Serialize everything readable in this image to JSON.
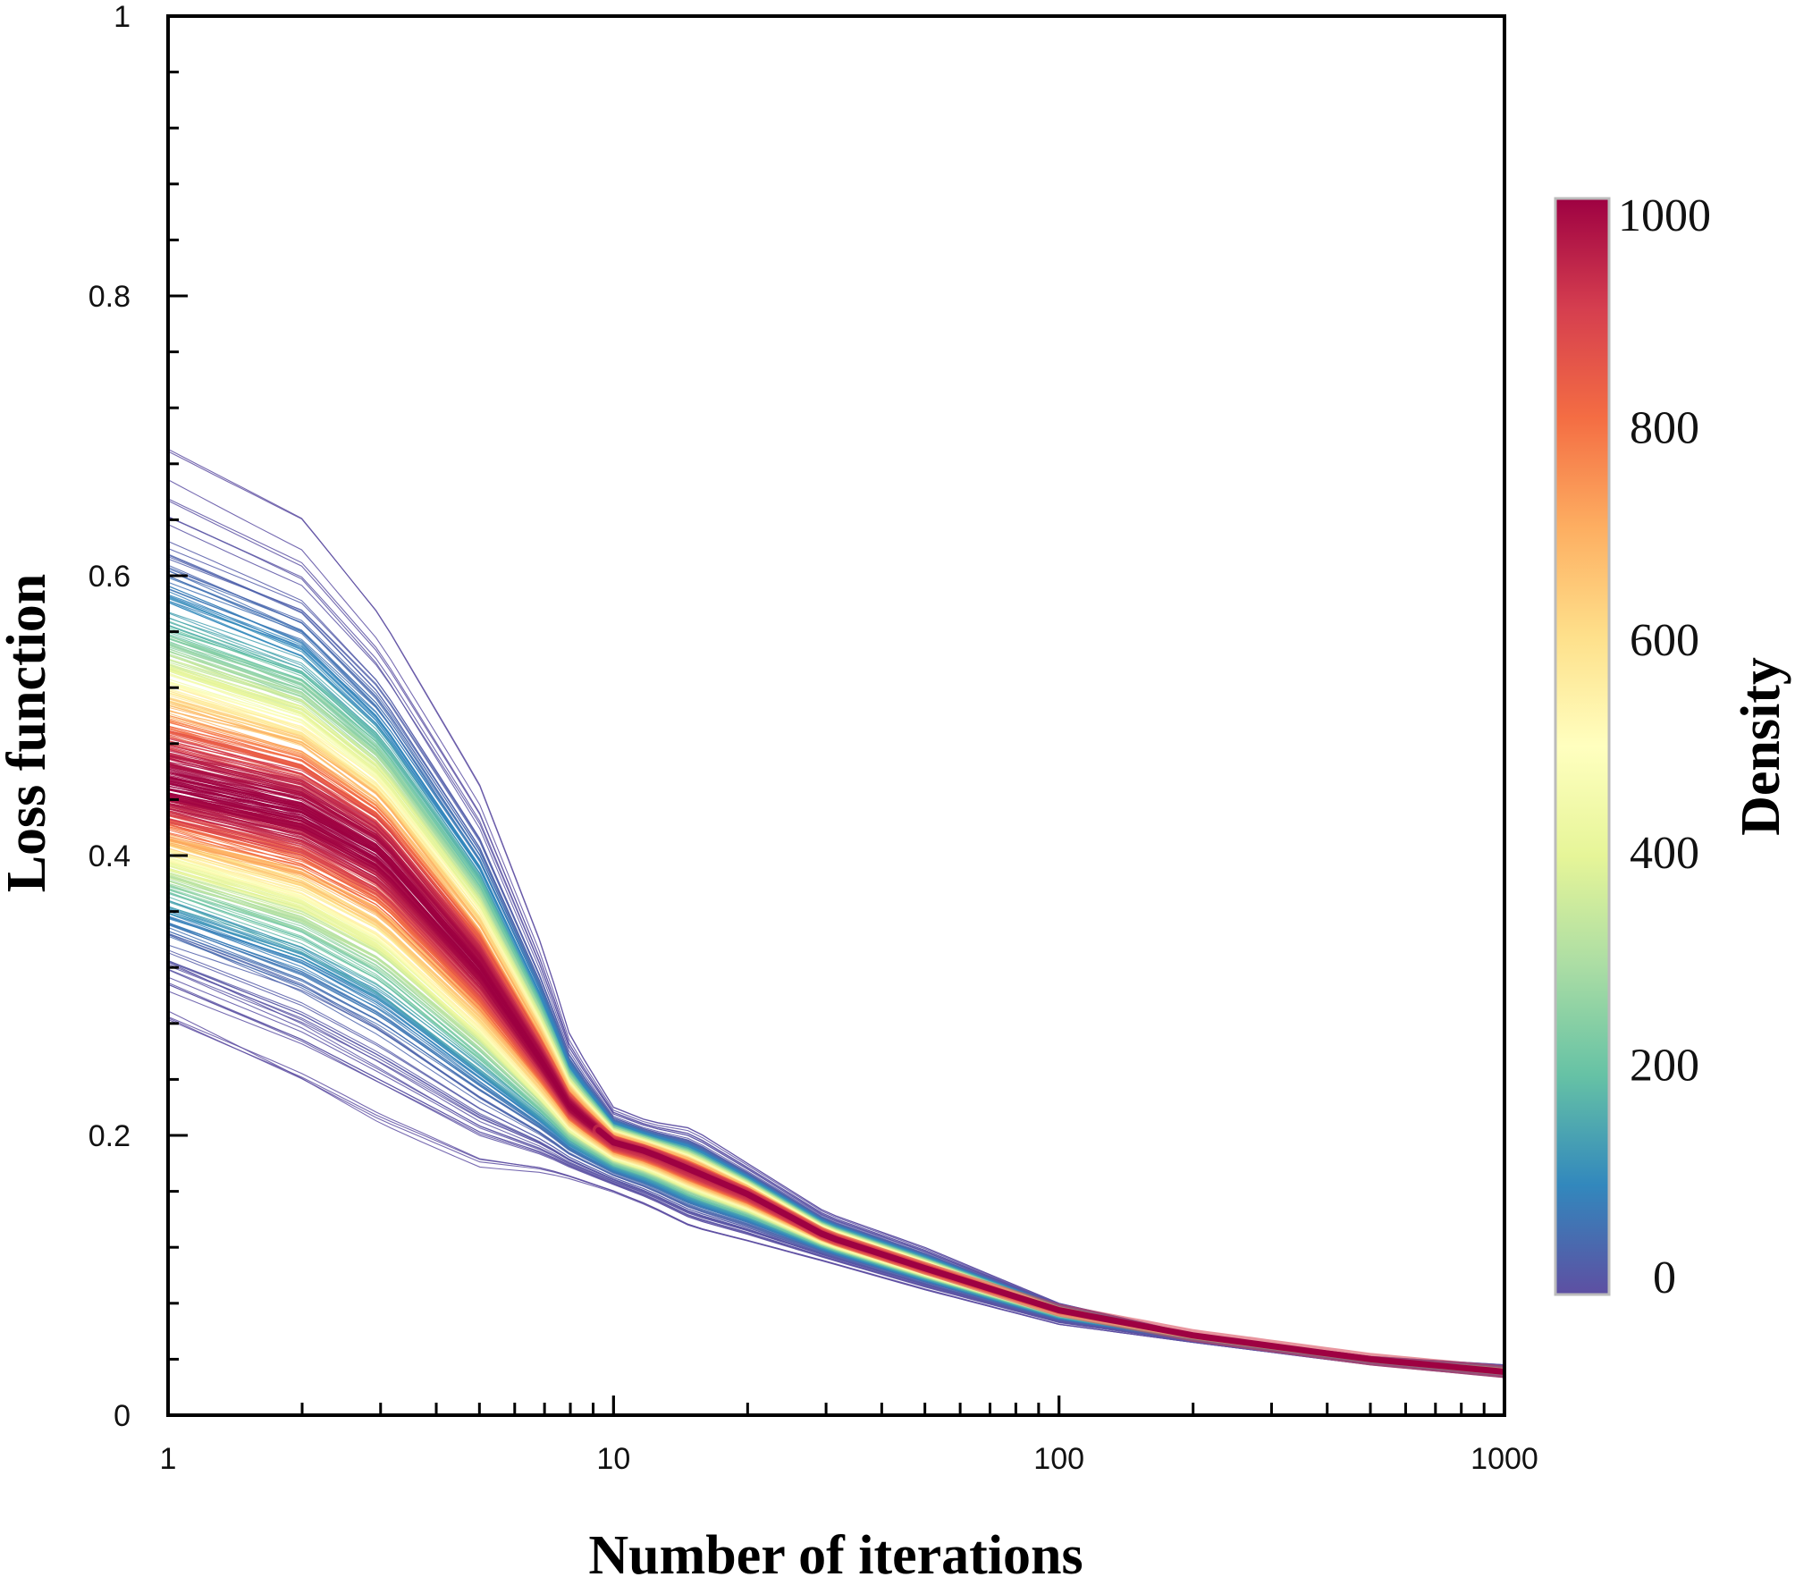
{
  "chart_data": {
    "type": "line",
    "xlabel": "Number of iterations",
    "ylabel": "Loss function",
    "xscale": "log",
    "xlim": [
      1,
      1000
    ],
    "ylim": [
      0,
      1
    ],
    "xticks": [
      {
        "value": 1,
        "label": "1"
      },
      {
        "value": 10,
        "label": "10"
      },
      {
        "value": 100,
        "label": "100"
      },
      {
        "value": 1000,
        "label": "1000"
      }
    ],
    "yticks": [
      {
        "value": 0,
        "label": "0"
      },
      {
        "value": 0.2,
        "label": "0.2"
      },
      {
        "value": 0.4,
        "label": "0.4"
      },
      {
        "value": 0.6,
        "label": "0.6"
      },
      {
        "value": 0.8,
        "label": "0.8"
      },
      {
        "value": 1,
        "label": "1"
      }
    ],
    "grid": false,
    "legend": "none",
    "colorbar": {
      "label": "Density",
      "range": [
        0,
        1000
      ],
      "ticks": [
        {
          "value": 0,
          "label": "0"
        },
        {
          "value": 200,
          "label": "200"
        },
        {
          "value": 400,
          "label": "400"
        },
        {
          "value": 600,
          "label": "600"
        },
        {
          "value": 800,
          "label": "800"
        },
        {
          "value": 1000,
          "label": "1000"
        }
      ],
      "colors": [
        "#5e4fa2",
        "#3288bd",
        "#66c2a5",
        "#abdda4",
        "#e6f598",
        "#ffffbf",
        "#fee08b",
        "#fdae61",
        "#f46d43",
        "#d53e4f",
        "#9e0142"
      ]
    },
    "envelope": {
      "x": [
        1,
        2,
        3,
        5,
        7,
        8,
        10,
        12,
        15,
        20,
        30,
        50,
        100,
        200,
        500,
        1000
      ],
      "upper": [
        0.69,
        0.64,
        0.57,
        0.45,
        0.33,
        0.27,
        0.22,
        0.21,
        0.205,
        0.18,
        0.145,
        0.12,
        0.08,
        0.058,
        0.042,
        0.036
      ],
      "lower": [
        0.285,
        0.24,
        0.21,
        0.18,
        0.175,
        0.17,
        0.16,
        0.15,
        0.135,
        0.125,
        0.11,
        0.09,
        0.065,
        0.052,
        0.036,
        0.027
      ]
    },
    "dense_band": {
      "x": [
        1,
        2,
        3,
        5,
        7,
        8,
        10,
        12,
        15,
        20,
        30,
        50,
        100,
        200,
        500,
        1000
      ],
      "y": [
        0.45,
        0.43,
        0.4,
        0.32,
        0.25,
        0.22,
        0.195,
        0.188,
        0.175,
        0.158,
        0.128,
        0.105,
        0.075,
        0.057,
        0.04,
        0.031
      ]
    },
    "n_lines": 520
  }
}
